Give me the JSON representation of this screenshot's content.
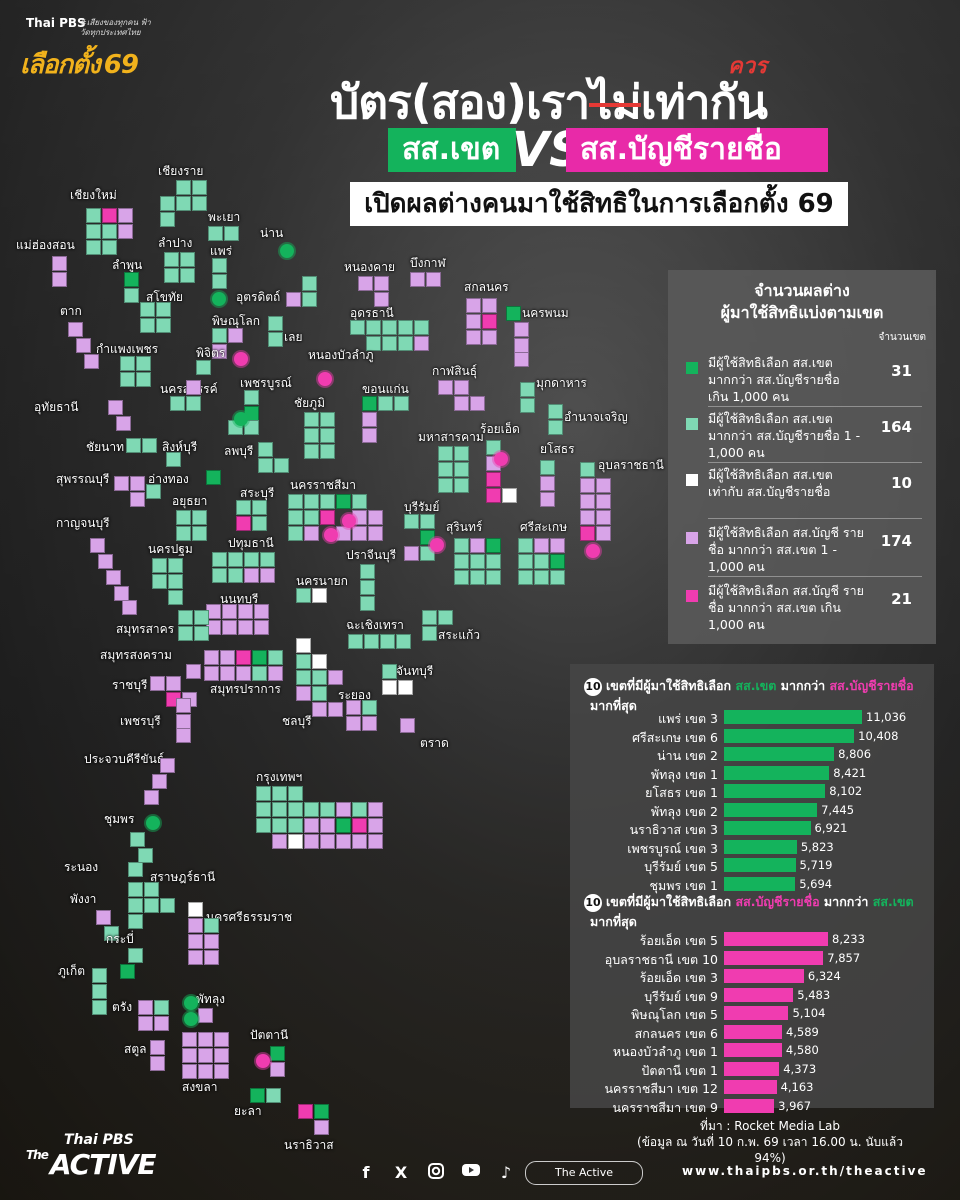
{
  "header": {
    "logo_thai_pbs": "Thai PBS",
    "logo_tagline": "#เสียงของทุกคน ฟ้าวัดทุกประเทศไทย",
    "logo_main": "เลือกตั้ง",
    "logo_number": "69",
    "title_part1": "บัตร(สอง)เรา",
    "title_strike": "ไม่",
    "title_part2": "เท่ากัน",
    "correction": "ควร",
    "pill_left": "สส.เขต",
    "vs": "VS",
    "pill_right": "สส.บัญชีรายชื่อ",
    "subtitle": "เปิดผลต่างคนมาใช้สิทธิในการเลือกตั้ง 69"
  },
  "colors": {
    "dark_green": "#14b35c",
    "mint": "#7fd9b4",
    "white": "#ffffff",
    "light_purple": "#d8a4e8",
    "hot_pink": "#f03cb0"
  },
  "legend": {
    "title_line1": "จำนวนผลต่าง",
    "title_line2": "ผู้มาใช้สิทธิแบ่งตามเขต",
    "count_header": "จำนวนเขต",
    "items": [
      {
        "text": "มีผู้ใช้สิทธิเลือก สส.เขต มากกว่า สส.บัญชีรายชื่อ เกิน 1,000 คน",
        "count": "31",
        "color": "#14b35c"
      },
      {
        "text": "มีผู้ใช้สิทธิเลือก สส.เขต มากกว่า สส.บัญชีรายชื่อ 1 - 1,000 คน",
        "count": "164",
        "color": "#7fd9b4"
      },
      {
        "text": "มีผู้ใช้สิทธิเลือก สส.เขต เท่ากับ สส.บัญชีรายชื่อ",
        "count": "10",
        "color": "#ffffff"
      },
      {
        "text": "มีผู้ใช้สิทธิเลือก สส.บัญชี รายชื่อ มากกว่า สส.เขต 1 - 1,000 คน",
        "count": "174",
        "color": "#d8a4e8"
      },
      {
        "text": "มีผู้ใช้สิทธิเลือก สส.บัญชี รายชื่อ มากกว่า สส.เขต เกิน 1,000 คน",
        "count": "21",
        "color": "#f03cb0"
      }
    ]
  },
  "ranking": {
    "top_district": {
      "badge": "10",
      "head_a": "เขตที่มีผู้มาใช้สิทธิเลือก ",
      "head_b": "สส.เขต",
      "head_c": " มากกว่า ",
      "head_d": "สส.บัญชีรายชื่อ",
      "head_line2": "มากที่สุด"
    },
    "top_party_list": {
      "badge": "10",
      "head_a": "เขตที่มีผู้มาใช้สิทธิเลือก ",
      "head_b": "สส.บัญชีรายชื่อ",
      "head_c": " มากกว่า ",
      "head_d": "สส.เขต",
      "head_line2": "มากที่สุด"
    }
  },
  "chart_data": [
    {
      "type": "bar",
      "orientation": "horizontal",
      "title": "10 เขตที่มีผู้มาใช้สิทธิเลือก สส.เขต มากกว่า สส.บัญชีรายชื่อ มากที่สุด",
      "categories": [
        "แพร่ เขต 3",
        "ศรีสะเกษ เขต 6",
        "น่าน เขต 2",
        "พัทลุง เขต 1",
        "ยโสธร เขต 1",
        "พัทลุง เขต 2",
        "นราธิวาส เขต 3",
        "เพชรบูรณ์ เขต 3",
        "บุรีรัมย์ เขต 5",
        "ชุมพร เขต 1"
      ],
      "values": [
        11036,
        10408,
        8806,
        8421,
        8102,
        7445,
        6921,
        5823,
        5719,
        5694
      ],
      "value_labels": [
        "11,036",
        "10,408",
        "8,806",
        "8,421",
        "8,102",
        "7,445",
        "6,921",
        "5,823",
        "5,719",
        "5,694"
      ],
      "color": "#14b35c"
    },
    {
      "type": "bar",
      "orientation": "horizontal",
      "title": "10 เขตที่มีผู้มาใช้สิทธิเลือก สส.บัญชีรายชื่อ มากกว่า สส.เขต มากที่สุด",
      "categories": [
        "ร้อยเอ็ด เขต 5",
        "อุบลราชธานี เขต 10",
        "ร้อยเอ็ด เขต 3",
        "บุรีรัมย์ เขต 9",
        "พิษณุโลก เขต 5",
        "สกลนคร เขต 6",
        "หนองบัวลำภู เขต 1",
        "ปัตตานี เขต 1",
        "นครราชสีมา เขต 12",
        "นครราชสีมา เขต 9"
      ],
      "values": [
        8233,
        7857,
        6324,
        5483,
        5104,
        4589,
        4580,
        4373,
        4163,
        3967
      ],
      "value_labels": [
        "8,233",
        "7,857",
        "6,324",
        "5,483",
        "5,104",
        "4,589",
        "4,580",
        "4,373",
        "4,163",
        "3,967"
      ],
      "color": "#f03cb0"
    }
  ],
  "map": {
    "provinces": [
      "เชียงราย",
      "เชียงใหม่",
      "พะเยา",
      "น่าน",
      "แม่ฮ่องสอน",
      "ลำปาง",
      "แพร่",
      "ลำพูน",
      "สุโขทัย",
      "อุตรดิตถ์",
      "หนองคาย",
      "บึงกาฬ",
      "ตาก",
      "สกลนคร",
      "นครพนม",
      "อุดรธานี",
      "พิษณุโลก",
      "เลย",
      "กำแพงเพชร",
      "พิจิตร",
      "หนองบัวลำภู",
      "กาฬสินธุ์",
      "มุกดาหาร",
      "นครสวรรค์",
      "เพชรบูรณ์",
      "ขอนแก่น",
      "อุทัยธานี",
      "ชัยภูมิ",
      "อำนาจเจริญ",
      "ร้อยเอ็ด",
      "ชัยนาท",
      "สิงห์บุรี",
      "มหาสารคาม",
      "ยโสธร",
      "อุบลราชธานี",
      "สุพรรณบุรี",
      "อ่างทอง",
      "ลพบุรี",
      "นครราชสีมา",
      "อยุธยา",
      "สระบุรี",
      "บุรีรัมย์",
      "กาญจนบุรี",
      "ปทุมธานี",
      "สุรินทร์",
      "ศรีสะเกษ",
      "นครปฐม",
      "ปราจีนบุรี",
      "นครนายก",
      "นนทบุรี",
      "สมุทรสาคร",
      "ฉะเชิงเทรา",
      "สระแก้ว",
      "สมุทรสงคราม",
      "จันทบุรี",
      "ราชบุรี",
      "สมุทรปราการ",
      "ระยอง",
      "เพชรบุรี",
      "ชลบุรี",
      "ตราด",
      "ประจวบคีรีขันธ์",
      "กรุงเทพฯ",
      "ชุมพร",
      "ระนอง",
      "สุราษฎร์ธานี",
      "พังงา",
      "นครศรีธรรมราช",
      "กระบี่",
      "ภูเก็ต",
      "พัทลุง",
      "ตรัง",
      "สตูล",
      "ปัตตานี",
      "สงขลา",
      "ยะลา",
      "นราธิวาส"
    ]
  },
  "footer": {
    "source_line1": "ที่มา : Rocket Media Lab",
    "source_line2": "(ข้อมูล ณ วันที่ 10 ก.พ. 69 เวลา 16.00 น. นับแล้ว 94%)",
    "brand_thai": "Thai PBS",
    "brand_the": "The",
    "brand_active": "ACTIVE",
    "social_pill": "The Active",
    "website": "www.thaipbs.or.th/theactive",
    "social_icons": [
      "facebook-icon",
      "x-icon",
      "instagram-icon",
      "youtube-icon",
      "tiktok-icon"
    ]
  }
}
